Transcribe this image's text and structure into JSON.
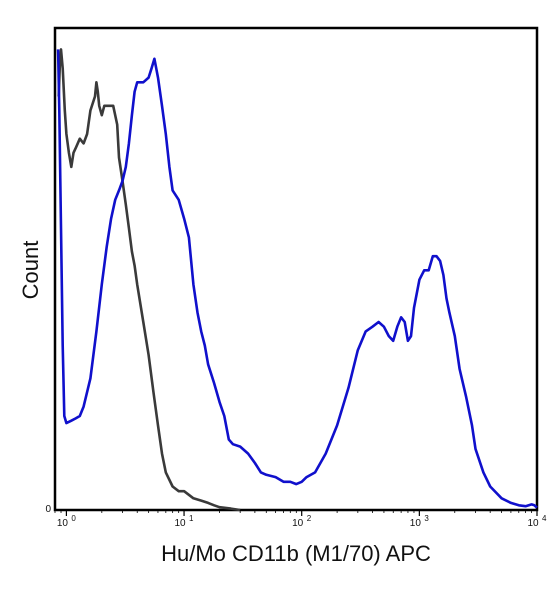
{
  "chart_data": {
    "type": "line",
    "title": "",
    "xlabel": "Hu/Mo CD11b (M1/70) APC",
    "ylabel": "Count",
    "x_scale": "log",
    "xlim": [
      0.8,
      10000
    ],
    "ylim": [
      0,
      100
    ],
    "x_ticks": [
      {
        "value": 1,
        "base": "10",
        "exp": "0"
      },
      {
        "value": 10,
        "base": "10",
        "exp": "1"
      },
      {
        "value": 100,
        "base": "10",
        "exp": "2"
      },
      {
        "value": 1000,
        "base": "10",
        "exp": "3"
      },
      {
        "value": 10000,
        "base": "10",
        "exp": "4"
      }
    ],
    "y_ticks": [
      {
        "value": 0,
        "label": "0"
      }
    ],
    "grid": false,
    "legend": "none",
    "series": [
      {
        "color": "#3a3a3a",
        "style": "solid",
        "points": [
          [
            0.86,
            88
          ],
          [
            0.88,
            95
          ],
          [
            0.9,
            98
          ],
          [
            0.93,
            94
          ],
          [
            0.97,
            85
          ],
          [
            1.0,
            80
          ],
          [
            1.05,
            76
          ],
          [
            1.1,
            73
          ],
          [
            1.15,
            76
          ],
          [
            1.2,
            77
          ],
          [
            1.3,
            79
          ],
          [
            1.4,
            78
          ],
          [
            1.5,
            80
          ],
          [
            1.6,
            85
          ],
          [
            1.75,
            88
          ],
          [
            1.8,
            91
          ],
          [
            1.85,
            89
          ],
          [
            1.9,
            86
          ],
          [
            2.0,
            84
          ],
          [
            2.1,
            86
          ],
          [
            2.3,
            86
          ],
          [
            2.5,
            86
          ],
          [
            2.7,
            82
          ],
          [
            2.8,
            75
          ],
          [
            3.0,
            70
          ],
          [
            3.2,
            65
          ],
          [
            3.4,
            60
          ],
          [
            3.6,
            55
          ],
          [
            3.8,
            52
          ],
          [
            4.0,
            48
          ],
          [
            4.5,
            40
          ],
          [
            5.0,
            33
          ],
          [
            5.5,
            25
          ],
          [
            6.0,
            18
          ],
          [
            6.5,
            12
          ],
          [
            7.0,
            8
          ],
          [
            8.0,
            5
          ],
          [
            9.0,
            4
          ],
          [
            10.0,
            4
          ],
          [
            12.0,
            2.5
          ],
          [
            14.0,
            2
          ],
          [
            16.0,
            1.5
          ],
          [
            18.0,
            1
          ],
          [
            20.0,
            0.6
          ],
          [
            25.0,
            0.3
          ],
          [
            30.0,
            0
          ]
        ]
      },
      {
        "color": "#1010cc",
        "style": "solid",
        "points": [
          [
            0.85,
            98
          ],
          [
            0.87,
            85
          ],
          [
            0.9,
            60
          ],
          [
            0.93,
            35
          ],
          [
            0.96,
            20
          ],
          [
            1.0,
            18.5
          ],
          [
            1.1,
            19
          ],
          [
            1.2,
            19.5
          ],
          [
            1.3,
            20
          ],
          [
            1.4,
            22
          ],
          [
            1.6,
            28
          ],
          [
            1.8,
            38
          ],
          [
            2.0,
            48
          ],
          [
            2.2,
            56
          ],
          [
            2.4,
            62
          ],
          [
            2.6,
            66
          ],
          [
            2.8,
            68
          ],
          [
            3.0,
            70
          ],
          [
            3.2,
            73
          ],
          [
            3.4,
            78
          ],
          [
            3.6,
            84
          ],
          [
            3.8,
            89
          ],
          [
            4.0,
            91
          ],
          [
            4.5,
            91
          ],
          [
            5.0,
            92
          ],
          [
            5.3,
            94
          ],
          [
            5.6,
            96
          ],
          [
            6.0,
            92
          ],
          [
            6.5,
            86
          ],
          [
            7.0,
            80
          ],
          [
            7.5,
            73
          ],
          [
            8.0,
            68
          ],
          [
            9.0,
            66
          ],
          [
            10.0,
            62
          ],
          [
            11.0,
            58
          ],
          [
            12.0,
            48
          ],
          [
            13.0,
            42
          ],
          [
            14.0,
            38
          ],
          [
            15.0,
            35
          ],
          [
            16.0,
            31
          ],
          [
            18.0,
            27
          ],
          [
            20.0,
            23
          ],
          [
            22.0,
            20
          ],
          [
            24.0,
            15
          ],
          [
            26.0,
            14
          ],
          [
            30.0,
            13.5
          ],
          [
            35.0,
            12
          ],
          [
            40.0,
            10
          ],
          [
            45.0,
            8
          ],
          [
            50.0,
            7.5
          ],
          [
            60.0,
            7
          ],
          [
            70.0,
            6
          ],
          [
            80.0,
            6
          ],
          [
            90.0,
            5.5
          ],
          [
            100.0,
            6
          ],
          [
            110.0,
            7
          ],
          [
            130.0,
            8
          ],
          [
            160.0,
            12
          ],
          [
            200.0,
            18
          ],
          [
            250.0,
            26
          ],
          [
            300.0,
            34
          ],
          [
            350.0,
            38
          ],
          [
            400.0,
            39
          ],
          [
            450.0,
            40
          ],
          [
            500.0,
            39
          ],
          [
            550.0,
            37
          ],
          [
            600.0,
            36
          ],
          [
            650.0,
            39
          ],
          [
            700.0,
            41
          ],
          [
            750.0,
            40
          ],
          [
            800.0,
            36
          ],
          [
            850.0,
            37
          ],
          [
            900.0,
            43
          ],
          [
            1000.0,
            49
          ],
          [
            1100.0,
            51
          ],
          [
            1200.0,
            51
          ],
          [
            1300.0,
            54
          ],
          [
            1400.0,
            54
          ],
          [
            1500.0,
            53
          ],
          [
            1600.0,
            50
          ],
          [
            1700.0,
            45
          ],
          [
            1800.0,
            42
          ],
          [
            2000.0,
            37
          ],
          [
            2200.0,
            30
          ],
          [
            2500.0,
            24
          ],
          [
            2800.0,
            18
          ],
          [
            3000.0,
            13
          ],
          [
            3500.0,
            8
          ],
          [
            4000.0,
            5
          ],
          [
            5000.0,
            2.5
          ],
          [
            6000.0,
            1.5
          ],
          [
            7000.0,
            1
          ],
          [
            8000.0,
            0.8
          ],
          [
            9000.0,
            1.2
          ],
          [
            9500.0,
            1
          ],
          [
            10000.0,
            0.5
          ]
        ]
      }
    ]
  }
}
